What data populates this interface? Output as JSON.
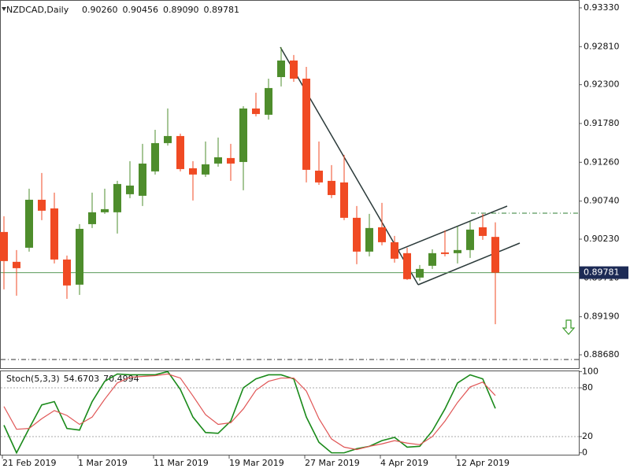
{
  "chart_data": [
    {
      "type": "candlestick",
      "title": "NZDCAD,Daily",
      "readout": [
        "0.90260",
        "0.90456",
        "0.89090",
        "0.89781"
      ],
      "categories": [
        "21 Feb 2019",
        null,
        null,
        null,
        null,
        null,
        "1 Mar 2019",
        null,
        null,
        null,
        null,
        null,
        "11 Mar 2019",
        null,
        null,
        null,
        null,
        null,
        "19 Mar 2019",
        null,
        null,
        null,
        null,
        null,
        "27 Mar 2019",
        null,
        null,
        null,
        null,
        null,
        "4 Apr 2019",
        null,
        null,
        null,
        null,
        null,
        "12 Apr 2019",
        null,
        null,
        null
      ],
      "open": [
        0.90326,
        0.89926,
        0.90115,
        0.90758,
        0.90642,
        0.89957,
        0.8962,
        0.90431,
        0.9059,
        0.9059,
        0.90832,
        0.90811,
        0.91138,
        0.91517,
        0.91612,
        0.9118,
        0.91096,
        0.91243,
        0.91317,
        0.91264,
        0.91981,
        0.91897,
        0.92402,
        0.92624,
        0.92381,
        0.91148,
        0.91011,
        0.9099,
        0.90516,
        0.90063,
        0.90389,
        0.90189,
        0.90042,
        0.89715,
        0.89873,
        0.90052,
        0.90042,
        0.90084,
        0.90389,
        0.9026
      ],
      "high": [
        0.90537,
        0.90084,
        0.90906,
        0.91117,
        0.90853,
        0.9001,
        0.90431,
        0.90853,
        0.90906,
        0.91011,
        0.91275,
        0.91507,
        0.91696,
        0.91981,
        0.91644,
        0.91275,
        0.91538,
        0.91591,
        0.91507,
        0.92012,
        0.92192,
        0.92381,
        0.92803,
        0.92698,
        0.92539,
        0.91538,
        0.91222,
        0.91359,
        0.90674,
        0.90569,
        0.90716,
        0.90273,
        0.90115,
        0.89883,
        0.90094,
        0.90347,
        0.904,
        0.90463,
        0.90569,
        0.90456
      ],
      "low": [
        0.89557,
        0.89472,
        0.90063,
        0.90484,
        0.89904,
        0.8943,
        0.89483,
        0.90379,
        0.90569,
        0.90305,
        0.90779,
        0.90674,
        0.91096,
        0.91485,
        0.91138,
        0.90748,
        0.91064,
        0.91201,
        0.91011,
        0.90885,
        0.91875,
        0.91833,
        0.92276,
        0.92339,
        0.9099,
        0.90958,
        0.90779,
        0.90484,
        0.89894,
        0.89999,
        0.90147,
        0.89915,
        0.89683,
        0.89673,
        0.89831,
        0.89999,
        0.89904,
        0.89978,
        0.90221,
        0.8909
      ],
      "close": [
        0.89936,
        0.89841,
        0.90758,
        0.90611,
        0.89957,
        0.89609,
        0.90368,
        0.9059,
        0.90632,
        0.90969,
        0.90948,
        0.91243,
        0.91517,
        0.91612,
        0.91169,
        0.91096,
        0.91233,
        0.91327,
        0.91243,
        0.91981,
        0.91907,
        0.92255,
        0.92624,
        0.92381,
        0.91159,
        0.9099,
        0.90821,
        0.90516,
        0.90063,
        0.90379,
        0.90189,
        0.89968,
        0.89694,
        0.89831,
        0.90042,
        0.90031,
        0.90084,
        0.90358,
        0.90273,
        0.89781
      ],
      "up_color": "#4e8d2c",
      "down_color": "#f04a23",
      "last_price": {
        "value": 0.89781,
        "label": "0.89781"
      },
      "ylim": [
        0.88501,
        0.93435
      ],
      "yticks": [
        {
          "value": 0.9333,
          "label": "0.93330"
        },
        {
          "value": 0.9281,
          "label": "0.92810"
        },
        {
          "value": 0.923,
          "label": "0.92300"
        },
        {
          "value": 0.9178,
          "label": "0.91780"
        },
        {
          "value": 0.9126,
          "label": "0.91260"
        },
        {
          "value": 0.9074,
          "label": "0.90740"
        },
        {
          "value": 0.9023,
          "label": "0.90230"
        },
        {
          "value": 0.8971,
          "label": "0.89710"
        },
        {
          "value": 0.8919,
          "label": "0.89190"
        },
        {
          "value": 0.8868,
          "label": "0.88680"
        }
      ]
    },
    {
      "type": "line",
      "title": "Stoch(5,3,3)",
      "readout": [
        "54.6703",
        "70.4994"
      ],
      "series": [
        {
          "color": "#1a8a1a",
          "values": [
            34,
            0,
            30,
            59,
            63,
            30,
            28,
            63,
            88,
            97,
            96,
            96,
            96,
            100,
            78,
            44,
            25,
            24,
            39,
            80,
            91,
            96,
            96,
            91,
            44,
            13,
            0,
            0,
            5,
            8,
            15,
            19,
            7,
            8,
            27,
            54,
            86,
            96,
            91,
            54.6703
          ]
        },
        {
          "color": "#e05555",
          "values": [
            57,
            29,
            30,
            42,
            52,
            46,
            35,
            44,
            66,
            86,
            93,
            94,
            95,
            97,
            92,
            70,
            47,
            35,
            37,
            54,
            77,
            88,
            92,
            92,
            76,
            42,
            17,
            7,
            4,
            8,
            11,
            15,
            12,
            10,
            20,
            39,
            62,
            81,
            87,
            70.4994
          ]
        }
      ],
      "ylim": [
        -2.3,
        100.3
      ],
      "yticks": [
        100,
        80,
        20,
        0
      ],
      "levels": [
        80,
        20
      ]
    }
  ]
}
